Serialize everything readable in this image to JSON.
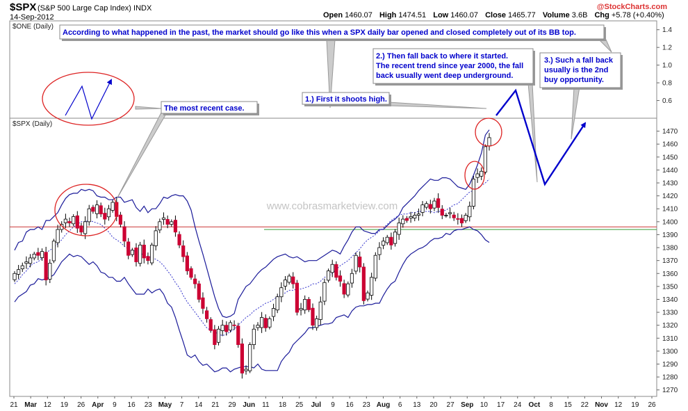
{
  "header": {
    "symbol": "$SPX",
    "name": "(S&P 500 Large Cap Index)",
    "exchange": "INDX",
    "date": "14-Sep-2012",
    "brand": "@StockCharts.com",
    "quote": [
      {
        "label": "Open",
        "value": "1460.07"
      },
      {
        "label": "High",
        "value": "1474.51"
      },
      {
        "label": "Low",
        "value": "1460.07"
      },
      {
        "label": "Close",
        "value": "1465.77"
      },
      {
        "label": "Volume",
        "value": "3.6B"
      },
      {
        "label": "Chg",
        "value": "+5.78 (+0.40%)"
      }
    ]
  },
  "watermark": "www.cobrasmarketview.com",
  "colors": {
    "up": "#ffffff",
    "down": "#cc0033",
    "band": "#1a1a99",
    "ma": "#3333cc",
    "annot": "#0000cc",
    "redline": "#cc3333",
    "greenline": "#339933"
  },
  "chart_data": [
    {
      "type": "line",
      "panel_label": "$ONE (Daily)",
      "ylim": [
        0.4,
        1.5
      ],
      "yticks": [
        0.6,
        0.8,
        1.0,
        1.2,
        1.4
      ],
      "series": []
    },
    {
      "type": "candlestick",
      "panel_label": "$SPX (Daily)",
      "ylim": [
        1265,
        1480
      ],
      "yticks": [
        1270,
        1280,
        1290,
        1300,
        1310,
        1320,
        1330,
        1340,
        1350,
        1360,
        1370,
        1380,
        1390,
        1400,
        1410,
        1420,
        1430,
        1440,
        1450,
        1460,
        1470
      ],
      "hlines": [
        {
          "value": 1396,
          "color": "red"
        },
        {
          "value": 1394,
          "color": "green"
        }
      ],
      "x_labels": [
        "21",
        "Mar",
        "12",
        "19",
        "26",
        "Apr",
        "9",
        "16",
        "23",
        "May",
        "7",
        "14",
        "21",
        "29",
        "Jun",
        "11",
        "18",
        "25",
        "Jul",
        "9",
        "16",
        "23",
        "Aug",
        "6",
        "13",
        "20",
        "27",
        "Sep",
        "10",
        "17",
        "24",
        "Oct",
        "8",
        "15",
        "22",
        "Nov",
        "12",
        "19",
        "26"
      ],
      "bold_x_labels": [
        "Mar",
        "Apr",
        "May",
        "Jun",
        "Jul",
        "Aug",
        "Sep",
        "Oct",
        "Nov"
      ],
      "close": [
        1360,
        1363,
        1366,
        1369,
        1372,
        1375,
        1374,
        1377,
        1355,
        1368,
        1385,
        1394,
        1398,
        1402,
        1399,
        1404,
        1395,
        1392,
        1400,
        1410,
        1408,
        1413,
        1406,
        1402,
        1410,
        1415,
        1404,
        1398,
        1385,
        1374,
        1378,
        1369,
        1382,
        1372,
        1370,
        1382,
        1393,
        1400,
        1403,
        1398,
        1400,
        1392,
        1382,
        1373,
        1362,
        1357,
        1352,
        1340,
        1333,
        1325,
        1316,
        1305,
        1317,
        1320,
        1315,
        1322,
        1320,
        1305,
        1283,
        1286,
        1305,
        1317,
        1320,
        1326,
        1318,
        1325,
        1333,
        1342,
        1349,
        1355,
        1358,
        1352,
        1330,
        1333,
        1340,
        1332,
        1320,
        1325,
        1338,
        1353,
        1362,
        1367,
        1357,
        1354,
        1344,
        1352,
        1360,
        1374,
        1365,
        1339,
        1345,
        1357,
        1374,
        1380,
        1385,
        1388,
        1382,
        1392,
        1399,
        1402,
        1401,
        1404,
        1405,
        1406,
        1413,
        1414,
        1410,
        1416,
        1411,
        1405,
        1405,
        1407,
        1403,
        1402,
        1399,
        1405,
        1412,
        1433,
        1437,
        1439,
        1458,
        1465
      ],
      "bb_upper": [
        1378,
        1384,
        1385,
        1392,
        1394,
        1394,
        1396,
        1394,
        1401,
        1401,
        1404,
        1407,
        1413,
        1418,
        1421,
        1422,
        1422,
        1425,
        1424,
        1425,
        1424,
        1420,
        1419,
        1419,
        1417,
        1417,
        1419,
        1419,
        1415,
        1416,
        1417,
        1411,
        1408,
        1412,
        1407,
        1410,
        1410,
        1414,
        1419,
        1418,
        1420,
        1421,
        1420,
        1420,
        1416,
        1409,
        1396,
        1385,
        1375,
        1364,
        1353,
        1342,
        1333,
        1327,
        1326,
        1327,
        1329,
        1340,
        1345,
        1350,
        1352,
        1356,
        1360,
        1363,
        1365,
        1368,
        1371,
        1373,
        1374,
        1375,
        1373,
        1372,
        1373,
        1371,
        1369,
        1370,
        1370,
        1370,
        1372,
        1374,
        1376,
        1378,
        1377,
        1375,
        1381,
        1386,
        1392,
        1396,
        1396,
        1393,
        1392,
        1391,
        1391,
        1394,
        1394,
        1397,
        1400,
        1402,
        1405,
        1411,
        1414,
        1417,
        1420,
        1424,
        1427,
        1430,
        1433,
        1432,
        1432,
        1434,
        1434,
        1433,
        1430,
        1427,
        1426,
        1425,
        1429,
        1436,
        1444,
        1453,
        1467,
        1471
      ],
      "bb_lower": [
        1338,
        1342,
        1344,
        1346,
        1351,
        1352,
        1356,
        1355,
        1356,
        1357,
        1359,
        1364,
        1369,
        1372,
        1375,
        1373,
        1374,
        1373,
        1370,
        1367,
        1369,
        1366,
        1361,
        1360,
        1357,
        1357,
        1354,
        1354,
        1357,
        1352,
        1348,
        1344,
        1344,
        1344,
        1348,
        1345,
        1347,
        1348,
        1344,
        1337,
        1334,
        1326,
        1316,
        1307,
        1297,
        1295,
        1297,
        1292,
        1289,
        1290,
        1287,
        1284,
        1285,
        1287,
        1287,
        1284,
        1286,
        1287,
        1288,
        1288,
        1288,
        1287,
        1290,
        1286,
        1285,
        1285,
        1285,
        1285,
        1292,
        1296,
        1299,
        1305,
        1308,
        1311,
        1314,
        1318,
        1318,
        1319,
        1320,
        1321,
        1321,
        1322,
        1326,
        1327,
        1328,
        1326,
        1331,
        1334,
        1335,
        1335,
        1336,
        1336,
        1337,
        1337,
        1343,
        1348,
        1352,
        1354,
        1361,
        1367,
        1372,
        1375,
        1377,
        1379,
        1380,
        1382,
        1385,
        1387,
        1387,
        1388,
        1391,
        1390,
        1393,
        1394,
        1394,
        1395,
        1396,
        1394,
        1393,
        1390,
        1386,
        1384
      ],
      "sma20": [
        1352,
        1355,
        1359,
        1362,
        1366,
        1368,
        1369,
        1372,
        1376,
        1378,
        1380,
        1383,
        1386,
        1390,
        1393,
        1396,
        1398,
        1400,
        1400,
        1401,
        1400,
        1399,
        1398,
        1395,
        1392,
        1388,
        1386,
        1384,
        1381,
        1379,
        1378,
        1377,
        1376,
        1374,
        1373,
        1372,
        1371,
        1369,
        1366,
        1362,
        1358,
        1353,
        1349,
        1343,
        1338,
        1334,
        1330,
        1326,
        1322,
        1318,
        1316,
        1315,
        1313,
        1312,
        1313,
        1315,
        1317,
        1320,
        1323,
        1326,
        1328,
        1331,
        1333,
        1335,
        1337,
        1338,
        1340,
        1342,
        1344,
        1345,
        1347,
        1347,
        1348,
        1348,
        1349,
        1350,
        1352,
        1352,
        1354,
        1357,
        1358,
        1360,
        1363,
        1366,
        1368,
        1370,
        1373,
        1376,
        1379,
        1383,
        1386,
        1388,
        1390,
        1393,
        1395,
        1398,
        1401,
        1403,
        1405,
        1406,
        1406,
        1407,
        1407,
        1408,
        1408,
        1408,
        1408,
        1407,
        1408,
        1408,
        1409,
        1411,
        1413,
        1414,
        1417,
        1420,
        1423,
        1424,
        1426,
        1428,
        1430,
        1433
      ]
    }
  ],
  "annotations": {
    "top_note": "According to what happened in the past, the market should go like this when a SPX daily bar opened and closed completely out of its BB top.",
    "recent_case": "The most recent case.",
    "step1": "1.) First it shoots high.",
    "step2_lines": [
      "2.) Then fall back to where it started.",
      "The recent trend since year 2000, the fall",
      "back usually went deep underground."
    ],
    "step3_lines": [
      "3.) Such a fall back",
      "usually is the 2nd",
      "buy opportunity."
    ]
  }
}
